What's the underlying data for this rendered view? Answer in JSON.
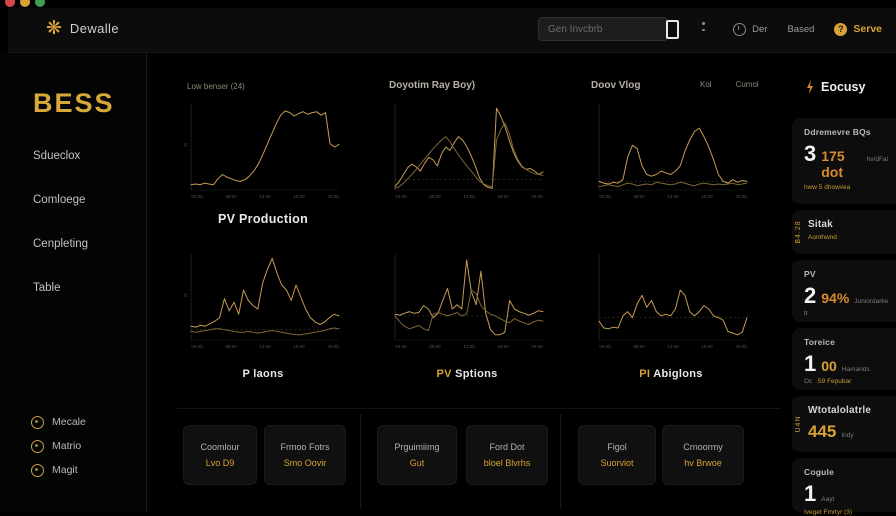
{
  "window": {
    "traffic_lights": [
      "close",
      "minimize",
      "zoom"
    ]
  },
  "header": {
    "app_name": "Dewalle",
    "logo_icon": "sun-icon",
    "search_placeholder": "Gen Invcbrb",
    "actions": [
      {
        "label": "Der",
        "icon": "clock-icon"
      },
      {
        "label": "Based",
        "icon": ""
      },
      {
        "label": "Serve",
        "icon": "help-icon",
        "accent_color": "#d9a234"
      }
    ]
  },
  "sidebar": {
    "brand": "BESS",
    "brand_color": "#d7a83a",
    "items": [
      {
        "label": "Sdueclox"
      },
      {
        "label": "Comloege"
      },
      {
        "label": "Cenpleting"
      },
      {
        "label": "Table"
      }
    ],
    "footer_items": [
      {
        "label": "Mecale",
        "icon": "ring-icon"
      },
      {
        "label": "Matrio",
        "icon": "ring-icon"
      },
      {
        "label": "Magit",
        "icon": "ring-icon"
      }
    ]
  },
  "chart_data": [
    {
      "type": "line",
      "header": "Low benser (24)",
      "caption_accent": "",
      "caption_text": "PV Production",
      "x_ticks": [
        "04:00",
        "08:00",
        "12:00",
        "16:00",
        "20:00"
      ],
      "ylim": [
        0,
        100
      ],
      "y_tick": "0",
      "gridline": null,
      "line_color": "#c69c52",
      "series": [
        {
          "name": "pv",
          "values": [
            6,
            7,
            6,
            8,
            7,
            6,
            13,
            18,
            15,
            13,
            11,
            10,
            12,
            16,
            22,
            30,
            41,
            53,
            65,
            77,
            87,
            92,
            90,
            86,
            89,
            91,
            88,
            90,
            91,
            87,
            90,
            54,
            50,
            53
          ]
        }
      ]
    },
    {
      "type": "line",
      "header": "Doyotim Ray Boy)",
      "caption_accent": "",
      "caption_text": "",
      "x_ticks": [
        "04:00",
        "08:00",
        "12:00",
        "16:00",
        "20:00"
      ],
      "ylim": [
        0,
        100
      ],
      "y_tick": "",
      "gridline": 12,
      "line_color": "#c69c52",
      "series": [
        {
          "name": "ray-a",
          "values": [
            4,
            10,
            18,
            26,
            30,
            27,
            22,
            31,
            38,
            35,
            28,
            42,
            50,
            46,
            55,
            62,
            58,
            50,
            40,
            28,
            14,
            6,
            3,
            2,
            95,
            86,
            74,
            58,
            44,
            34,
            27,
            24,
            25,
            22,
            18,
            21
          ]
        },
        {
          "name": "ray-b",
          "values": [
            2,
            4,
            8,
            13,
            18,
            24,
            30,
            36,
            42,
            48,
            53,
            58,
            62,
            56,
            48,
            41,
            34,
            28,
            22,
            16,
            10,
            7,
            5,
            4,
            58,
            70,
            78,
            66,
            48,
            36,
            28,
            24,
            21,
            19,
            18,
            17
          ]
        }
      ]
    },
    {
      "type": "line",
      "header": "Doov Vlog",
      "legend": [
        "Kol",
        "Cumol"
      ],
      "caption_accent": "",
      "caption_text": "",
      "x_ticks": [
        "04:00",
        "08:00",
        "12:00",
        "16:00",
        "20:00"
      ],
      "ylim": [
        0,
        100
      ],
      "y_tick": "",
      "gridline": 10,
      "line_color": "#c69c52",
      "series": [
        {
          "name": "kol",
          "values": [
            10,
            8,
            7,
            9,
            8,
            12,
            38,
            52,
            48,
            28,
            18,
            16,
            18,
            22,
            20,
            18,
            22,
            28,
            45,
            58,
            68,
            72,
            62,
            50,
            35,
            18,
            10,
            8,
            12,
            9,
            11,
            10
          ]
        },
        {
          "name": "cumol",
          "values": [
            4,
            5,
            6,
            5,
            4,
            6,
            8,
            7,
            5,
            6,
            7,
            6,
            9,
            8,
            7,
            6,
            7,
            9,
            8,
            6,
            5,
            7,
            8,
            7,
            6,
            7,
            6,
            7,
            8,
            6,
            7,
            8
          ]
        }
      ]
    },
    {
      "type": "line",
      "header": "",
      "caption_accent": "",
      "caption_text": "P laons",
      "x_ticks": [
        "04:00",
        "08:00",
        "12:00",
        "16:00",
        "20:00"
      ],
      "ylim": [
        0,
        100
      ],
      "y_tick": "0",
      "gridline": 12,
      "line_color": "#c69c52",
      "series": [
        {
          "name": "a",
          "values": [
            16,
            15,
            17,
            16,
            19,
            22,
            26,
            48,
            34,
            44,
            30,
            58,
            46,
            40,
            36,
            66,
            82,
            95,
            78,
            64,
            58,
            46,
            64,
            50,
            36,
            26,
            21,
            18,
            21,
            26,
            30,
            28
          ]
        },
        {
          "name": "b",
          "values": [
            10,
            9,
            10,
            11,
            12,
            13,
            13,
            12,
            11,
            10,
            9,
            9,
            10,
            9,
            8,
            9,
            10,
            11,
            10,
            9,
            8,
            7,
            6,
            6,
            7,
            8,
            9,
            10,
            11,
            13,
            14,
            13
          ]
        }
      ]
    },
    {
      "type": "line",
      "header": "",
      "caption_accent": "PV",
      "caption_text": "Sptions",
      "x_ticks": [
        "04:00",
        "08:00",
        "12:00",
        "16:00",
        "20:00"
      ],
      "ylim": [
        0,
        100
      ],
      "y_tick": "",
      "gridline": 28,
      "line_color": "#c69c52",
      "series": [
        {
          "name": "a",
          "values": [
            30,
            29,
            31,
            33,
            31,
            32,
            40,
            36,
            26,
            31,
            46,
            60,
            36,
            41,
            36,
            93,
            56,
            41,
            80,
            31,
            12,
            6,
            6,
            9,
            46,
            36,
            33,
            31,
            29,
            31,
            34,
            33
          ]
        },
        {
          "name": "b",
          "values": [
            28,
            21,
            16,
            13,
            15,
            17,
            13,
            11,
            30,
            32,
            30,
            28,
            30,
            32,
            28,
            30,
            58,
            54,
            40,
            34,
            30,
            28,
            25,
            22,
            20,
            25,
            22,
            20,
            18,
            21,
            23,
            22
          ]
        }
      ]
    },
    {
      "type": "line",
      "header": "",
      "caption_accent": "PI",
      "caption_text": "Abiglons",
      "x_ticks": [
        "04:00",
        "08:00",
        "12:00",
        "16:00",
        "20:00"
      ],
      "ylim": [
        0,
        100
      ],
      "y_tick": "",
      "gridline": 26,
      "line_color": "#c69c52",
      "series": [
        {
          "name": "a",
          "values": [
            22,
            14,
            13,
            15,
            14,
            28,
            33,
            26,
            42,
            52,
            38,
            46,
            33,
            28,
            30,
            28,
            36,
            58,
            52,
            33,
            28,
            33,
            40,
            36,
            28,
            26,
            23,
            10,
            8,
            6,
            9,
            26
          ]
        }
      ]
    }
  ],
  "bottom_cards": [
    {
      "title": "Coomlour",
      "value": "Lvo D9"
    },
    {
      "title": "Frmoo Fotrs",
      "value": "Smo Oovir"
    },
    {
      "title": "Prguimiimg",
      "value": "Gut"
    },
    {
      "title": "Ford Dot",
      "value": "bloel Blvrhs"
    },
    {
      "title": "Figol",
      "value": "Suorviot"
    },
    {
      "title": "Crnoormy",
      "value": "hv Brwoe"
    }
  ],
  "right_panel": {
    "title": "Eocusy",
    "title_icon": "bolt-icon",
    "accent_orange": "#d98a2e",
    "accent_yellow": "#d9a234",
    "cards": {
      "a": {
        "title": "Ddremevre BQs",
        "number": "3",
        "accent_value": "175 dot",
        "side_note": "hv/dFal",
        "sub_line": "hww 5 dhowvea"
      },
      "b": {
        "vertical_label": "B4.28",
        "title": "Sitak",
        "sub_line": "Aonthwnd"
      },
      "c": {
        "title": "PV",
        "number": "2",
        "accent_value": "94%",
        "side_note": "Juniordarke",
        "sub_line": "tr"
      },
      "d": {
        "title": "Toreice",
        "number": "1",
        "accent_value": "00",
        "side_note": "Hamarids",
        "sub_note": "Oc",
        "sub_line": "S9 Fepubar"
      },
      "e": {
        "vertical_label": "U4N",
        "title": "Wtotalolatrle",
        "accent_value": "445",
        "side_note": "Indy"
      },
      "f": {
        "title": "Cogule",
        "number": "1",
        "side_note": "Aayt",
        "sub_line": "Iveget Fmrtyr (3)"
      }
    }
  }
}
